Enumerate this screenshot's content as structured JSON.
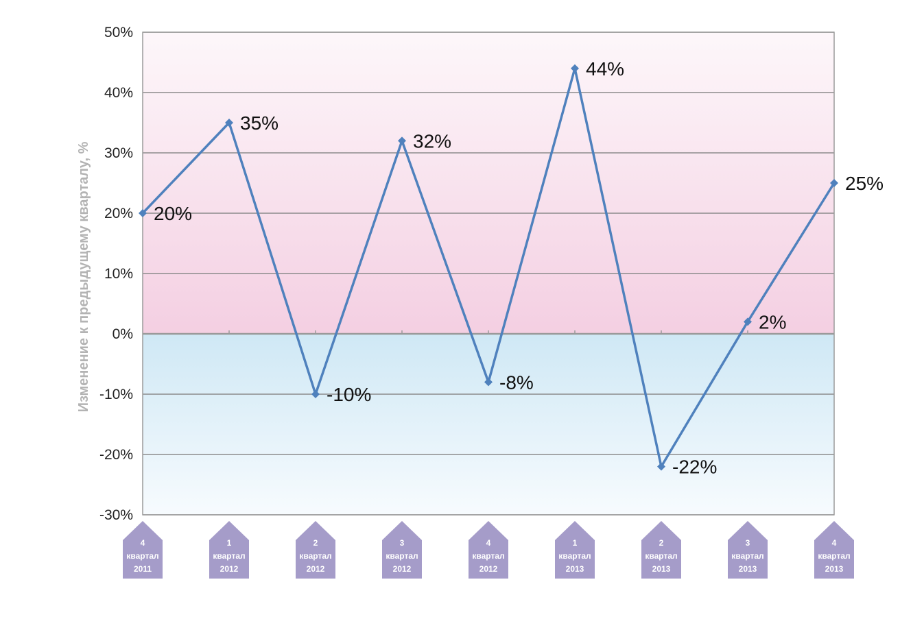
{
  "chart_data": {
    "type": "line",
    "ylabel": "Изменение к предыдущему кварталу, %",
    "ylim": [
      -30,
      50
    ],
    "yticks": [
      50,
      40,
      30,
      20,
      10,
      0,
      -10,
      -20,
      -30
    ],
    "ytick_labels": [
      "50%",
      "40%",
      "30%",
      "20%",
      "10%",
      "0%",
      "-10%",
      "-20%",
      "-30%"
    ],
    "grid": true,
    "legend": "none",
    "categories": [
      {
        "quarter": "4",
        "word": "квартал",
        "year": "2011"
      },
      {
        "quarter": "1",
        "word": "квартал",
        "year": "2012"
      },
      {
        "quarter": "2",
        "word": "квартал",
        "year": "2012"
      },
      {
        "quarter": "3",
        "word": "квартал",
        "year": "2012"
      },
      {
        "quarter": "4",
        "word": "квартал",
        "year": "2012"
      },
      {
        "quarter": "1",
        "word": "квартал",
        "year": "2013"
      },
      {
        "quarter": "2",
        "word": "квартал",
        "year": "2013"
      },
      {
        "quarter": "3",
        "word": "квартал",
        "year": "2013"
      },
      {
        "quarter": "4",
        "word": "квартал",
        "year": "2013"
      }
    ],
    "series": [
      {
        "values": [
          20,
          35,
          -10,
          32,
          -8,
          44,
          -22,
          2,
          25
        ],
        "labels": [
          "20%",
          "35%",
          "-10%",
          "32%",
          "-8%",
          "44%",
          "-22%",
          "2%",
          "25%"
        ]
      }
    ],
    "colors": {
      "line": "#4f81bd",
      "grid": "#8c8c8c",
      "positive_band_top": "#fdf7fa",
      "positive_band_bottom": "#f4cfe2",
      "negative_band_top": "#cfe8f5",
      "negative_band_bottom": "#f7fbfe",
      "badge": "#a59cc9",
      "ylabel": "#b3b3b3"
    }
  }
}
